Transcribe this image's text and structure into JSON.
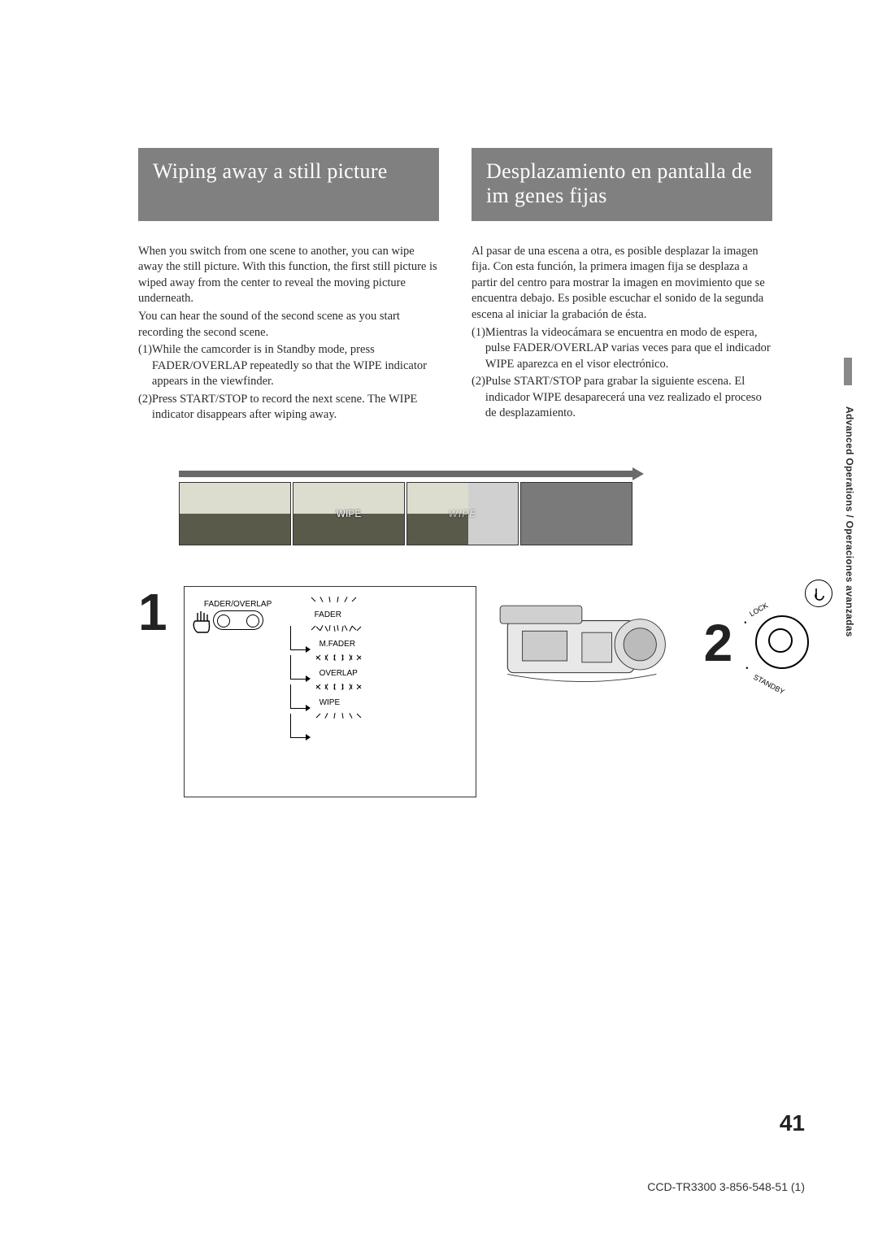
{
  "header": {
    "en_title": "Wiping away a still picture",
    "es_title": "Desplazamiento en pantalla de im genes fijas"
  },
  "en": {
    "p1": "When you switch from one scene to another, you can wipe away the still picture. With this function, the first still picture is wiped away from the center to reveal the moving picture underneath.",
    "p2": "You can hear the sound of the second scene as you start recording the second scene.",
    "s1_marker": "(1)",
    "s1": "While the camcorder is in Standby mode, press FADER/OVERLAP repeatedly so that the WIPE indicator appears in the viewfinder.",
    "s2_marker": "(2)",
    "s2": "Press START/STOP to record the next scene. The WIPE indicator disappears after wiping away."
  },
  "es": {
    "p1": "Al pasar de una escena a otra, es posible desplazar la imagen fija. Con esta función, la primera imagen fija se desplaza a partir del centro para mostrar la imagen en movimiento que se encuentra debajo. Es posible escuchar el sonido de la segunda escena al iniciar la grabación de ésta.",
    "s1_marker": "(1)",
    "s1": "Mientras la videocámara se encuentra en modo de espera, pulse FADER/OVERLAP varias veces para que el indicador WIPE aparezca en el visor electrónico.",
    "s2_marker": "(2)",
    "s2": "Pulse START/STOP para grabar la siguiente escena. El indicador WIPE desaparecerá una vez realizado el proceso de desplazamiento."
  },
  "wipe_label": "WIPE",
  "wipe_label_blink": "WIPE",
  "diagram": {
    "num1": "1",
    "num2": "2",
    "fader_overlap_label": "FADER/OVERLAP",
    "chain": [
      "FADER",
      "M.FADER",
      "OVERLAP",
      "WIPE"
    ],
    "lock_label": "LOCK",
    "standby_label": "STANDBY",
    "colors": {
      "border": "#000000",
      "text": "#000000"
    }
  },
  "sidebar": {
    "text": "Advanced Operations / Operaciones avanzadas"
  },
  "page_number": "41",
  "footer": "CCD-TR3300    3-856-548-51 (1)",
  "footer_bold": "51"
}
